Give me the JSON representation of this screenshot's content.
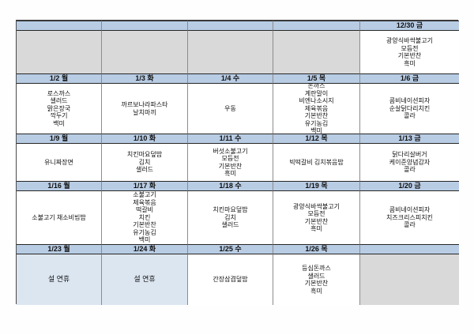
{
  "document_title": "weekly-lunch-menu-table",
  "colors": {
    "header_bg": "#b8cce4",
    "holiday_bg": "#dce6f1",
    "empty_bg": "#d9d9d9",
    "border_dark": "#262626",
    "border_light": "#8c8c8c"
  },
  "menu_table": {
    "weeks": [
      {
        "headers": [
          "",
          "",
          "",
          "",
          "12/30 금"
        ],
        "cells": [
          {
            "type": "empty-gray",
            "items": []
          },
          {
            "type": "empty-gray",
            "items": []
          },
          {
            "type": "empty-gray",
            "items": []
          },
          {
            "type": "empty-gray",
            "items": []
          },
          {
            "type": "menu",
            "items": [
              "광양식바싹불고기",
              "모듬전",
              "기본반찬",
              "흑미"
            ]
          }
        ]
      },
      {
        "headers": [
          "1/2 월",
          "1/3 화",
          "1/4 수",
          "1/5 목",
          "1/6 금"
        ],
        "cells": [
          {
            "type": "menu",
            "items": [
              "로스까스",
              "샐러드",
              "맑은장국",
              "깍두기",
              "백미"
            ]
          },
          {
            "type": "menu",
            "items": [
              "까르보나라파스타",
              "날치마끼"
            ]
          },
          {
            "type": "menu",
            "items": [
              "우동"
            ]
          },
          {
            "type": "menu",
            "items": [
              "돈까스",
              "계란말이",
              "비엔나소시지",
              "제육볶음",
              "기본반찬",
              "유기농김",
              "백미"
            ]
          },
          {
            "type": "menu",
            "items": [
              "콤비네이션피자",
              "순살닭다리치킨",
              "콜라"
            ]
          }
        ]
      },
      {
        "headers": [
          "1/9 월",
          "1/10 화",
          "1/11 수",
          "1/12 목",
          "1/13 금"
        ],
        "cells": [
          {
            "type": "menu",
            "items": [
              "유니짜장면"
            ]
          },
          {
            "type": "menu",
            "items": [
              "치킨마요덮밥",
              "김치",
              "샐러드"
            ]
          },
          {
            "type": "menu",
            "items": [
              "버섯소불고기",
              "모듬전",
              "기본반찬",
              "흑미"
            ]
          },
          {
            "type": "menu",
            "items": [
              "빅떡갈비 김치볶음밥"
            ]
          },
          {
            "type": "menu",
            "items": [
              "닭다리살버거",
              "케이준양념감자",
              "콜라"
            ]
          }
        ]
      },
      {
        "headers": [
          "1/16 월",
          "1/17 화",
          "1/18 수",
          "1/19 목",
          "1/20 금"
        ],
        "cells": [
          {
            "type": "menu",
            "items": [
              "소불고기 채소비빔밥"
            ]
          },
          {
            "type": "menu",
            "items": [
              "소불고기",
              "제육볶음",
              "떡갈비",
              "치킨",
              "기본반찬",
              "유기농김",
              "백미"
            ]
          },
          {
            "type": "menu",
            "items": [
              "치킨마요덮밥",
              "김치",
              "샐러드"
            ]
          },
          {
            "type": "menu",
            "items": [
              "광양식바싹불고기",
              "모듬전",
              "기본반찬",
              "흑미"
            ]
          },
          {
            "type": "menu",
            "items": [
              "콤비네이션피자",
              "치즈크리스피치킨",
              "콜라"
            ]
          }
        ]
      },
      {
        "headers": [
          "1/23 월",
          "1/24 화",
          "1/25 수",
          "1/26 목",
          ""
        ],
        "cells": [
          {
            "type": "holiday",
            "items": [
              "설 연휴"
            ]
          },
          {
            "type": "holiday",
            "items": [
              "설 연휴"
            ]
          },
          {
            "type": "menu",
            "items": [
              "간장삼겹덮밥"
            ]
          },
          {
            "type": "menu",
            "items": [
              "등심돈까스",
              "샐러드",
              "기본반찬",
              "흑미"
            ]
          },
          {
            "type": "empty-gray",
            "items": []
          }
        ]
      }
    ]
  }
}
